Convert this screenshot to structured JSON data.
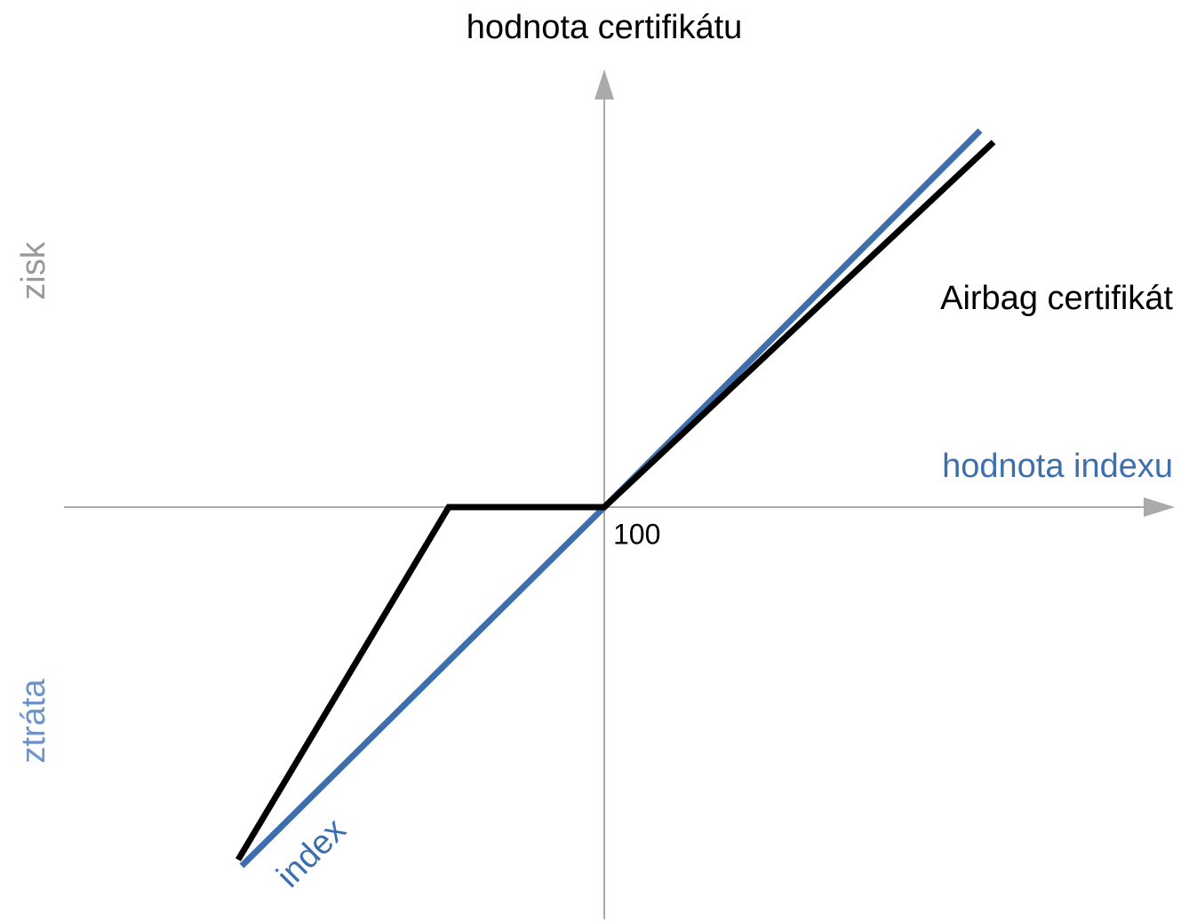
{
  "labels": {
    "y_axis": "hodnota certifikátu",
    "x_axis": "hodnota indexu",
    "gain": "zisk",
    "loss": "ztráta",
    "strike": "100",
    "certificate": "Airbag certifikát",
    "index": "index"
  }
}
